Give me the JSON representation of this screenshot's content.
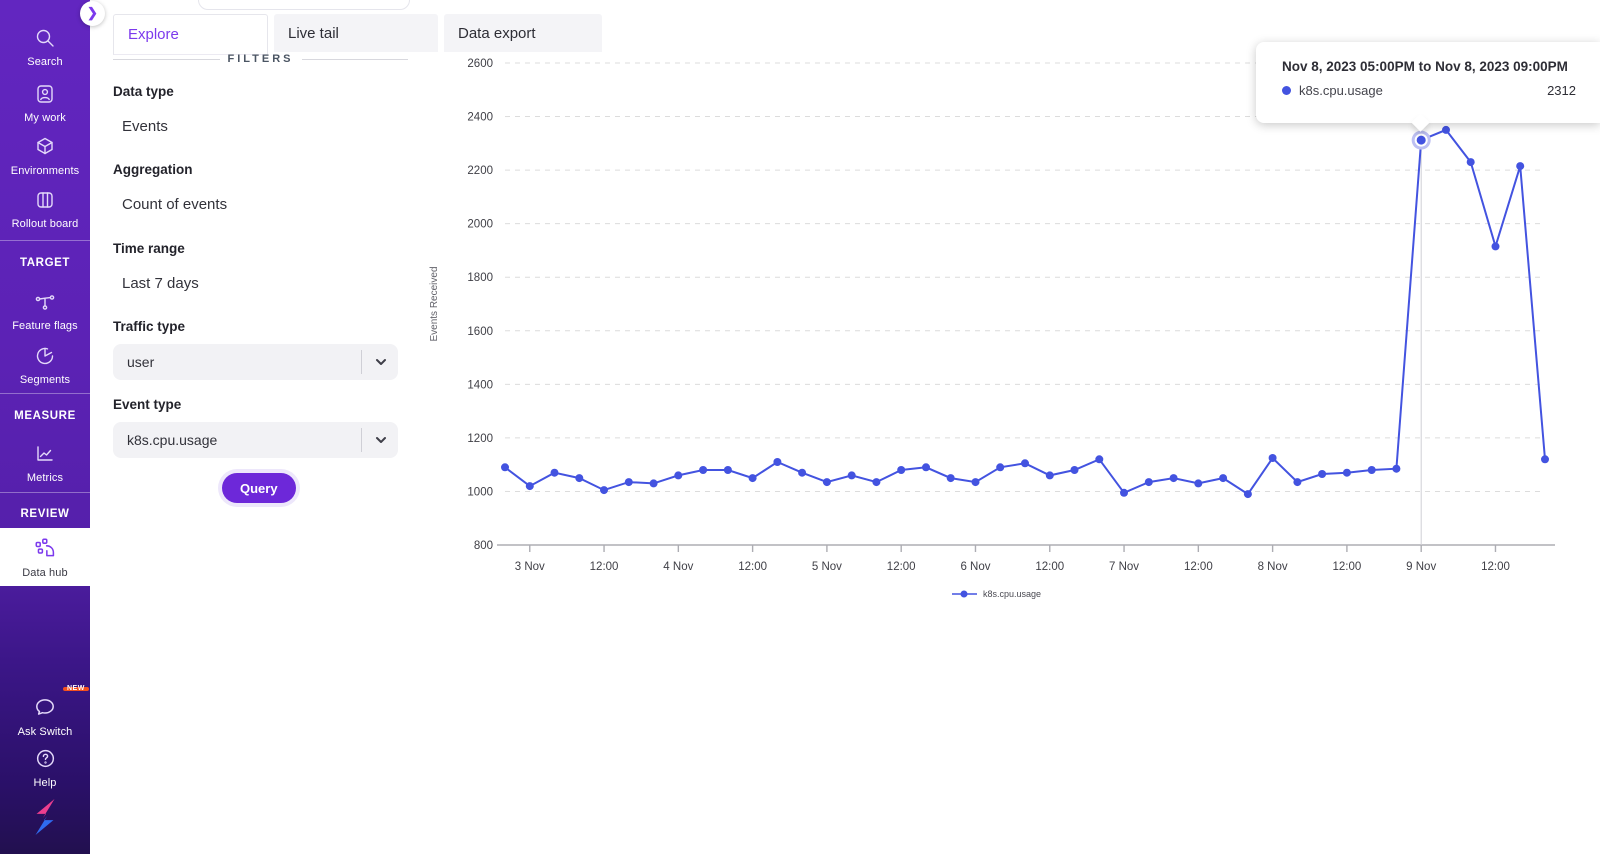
{
  "sidebar": {
    "items": [
      {
        "label": "Search"
      },
      {
        "label": "My work"
      },
      {
        "label": "Environments"
      },
      {
        "label": "Rollout board"
      }
    ],
    "sections": [
      {
        "header": "TARGET",
        "items": [
          {
            "label": "Feature flags"
          },
          {
            "label": "Segments"
          }
        ]
      },
      {
        "header": "MEASURE",
        "items": [
          {
            "label": "Metrics"
          }
        ]
      },
      {
        "header": "REVIEW",
        "items": [
          {
            "label": "Data hub",
            "active": true
          }
        ]
      }
    ],
    "footer": [
      {
        "label": "Ask Switch",
        "badge": "NEW"
      },
      {
        "label": "Help"
      }
    ]
  },
  "tabs": [
    {
      "label": "Explore",
      "active": true
    },
    {
      "label": "Live tail",
      "active": false
    },
    {
      "label": "Data export",
      "active": false
    }
  ],
  "filters": {
    "heading": "FILTERS",
    "data_type_label": "Data type",
    "data_type_value": "Events",
    "aggregation_label": "Aggregation",
    "aggregation_value": "Count of events",
    "time_range_label": "Time range",
    "time_range_value": "Last 7 days",
    "traffic_type_label": "Traffic type",
    "traffic_type_value": "user",
    "event_type_label": "Event type",
    "event_type_value": "k8s.cpu.usage",
    "query_button_label": "Query"
  },
  "tooltip": {
    "title": "Nov 8, 2023 05:00PM to Nov 8, 2023 09:00PM",
    "series": "k8s.cpu.usage",
    "value": "2312"
  },
  "chart_data": {
    "type": "line",
    "title": "",
    "ylabel": "Events Received",
    "xlabel": "",
    "ylim": [
      800,
      2600
    ],
    "y_ticks": [
      800,
      1000,
      1200,
      1400,
      1600,
      1800,
      2000,
      2200,
      2400,
      2600
    ],
    "x_tick_labels": [
      "3 Nov",
      "12:00",
      "4 Nov",
      "12:00",
      "5 Nov",
      "12:00",
      "6 Nov",
      "12:00",
      "7 Nov",
      "12:00",
      "8 Nov",
      "12:00",
      "9 Nov",
      "12:00"
    ],
    "x_tick_point_indices": [
      1,
      4,
      7,
      10,
      13,
      16,
      19,
      22,
      25,
      28,
      31,
      34,
      37,
      40
    ],
    "point_interval_hours": 4,
    "grid": "dashed-horizontal",
    "legend_position": "bottom-center",
    "series": [
      {
        "name": "k8s.cpu.usage",
        "color": "#4353e0",
        "values": [
          1090,
          1020,
          1070,
          1050,
          1005,
          1035,
          1030,
          1060,
          1080,
          1080,
          1050,
          1110,
          1070,
          1035,
          1060,
          1035,
          1080,
          1090,
          1050,
          1035,
          1090,
          1105,
          1060,
          1080,
          1120,
          995,
          1035,
          1050,
          1030,
          1050,
          990,
          1125,
          1035,
          1065,
          1070,
          1080,
          1085,
          2312,
          2350,
          2230,
          1915,
          2215,
          1120
        ]
      }
    ],
    "highlight": {
      "index": 37,
      "value": 2312
    }
  },
  "colors": {
    "accent_purple": "#6d28d9",
    "series_blue": "#4353e0",
    "sidebar_purple_top": "#6226c0",
    "sidebar_purple_bottom": "#22104f",
    "new_badge_orange": "#f4511e",
    "logo_pink": "#ec3e8e",
    "logo_blue": "#2f6bf0"
  }
}
